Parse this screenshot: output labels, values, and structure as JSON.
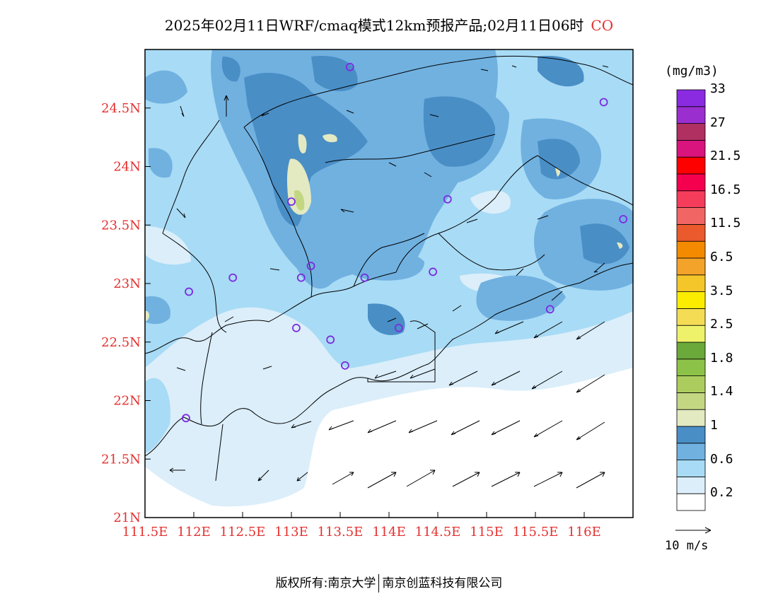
{
  "title": {
    "main": "2025年02月11日WRF/cmaq模式12km预报产品;02月11日06时",
    "species": "CO"
  },
  "colorbar": {
    "unit": "(mg/m3)",
    "bins": [
      {
        "color": "#ffffff"
      },
      {
        "color": "#dbeefa"
      },
      {
        "color": "#a8dbf5"
      },
      {
        "color": "#70b1e0"
      },
      {
        "color": "#4a8ec6"
      },
      {
        "color": "#e3eac2"
      },
      {
        "color": "#c3d783"
      },
      {
        "color": "#adcc5e"
      },
      {
        "color": "#8cc248"
      },
      {
        "color": "#6aa93a"
      },
      {
        "color": "#eef26a"
      },
      {
        "color": "#f4dc55"
      },
      {
        "color": "#fbec00"
      },
      {
        "color": "#f4c62a"
      },
      {
        "color": "#f4a32a"
      },
      {
        "color": "#f48a00"
      },
      {
        "color": "#ea5a2c"
      },
      {
        "color": "#f16565"
      },
      {
        "color": "#f53c5a"
      },
      {
        "color": "#f5004f"
      },
      {
        "color": "#ff0000"
      },
      {
        "color": "#d9147e"
      },
      {
        "color": "#b03062"
      },
      {
        "color": "#9a2ecf"
      },
      {
        "color": "#8a2be2"
      }
    ],
    "labels": [
      "0.2",
      "0.6",
      "1",
      "1.4",
      "1.8",
      "2.5",
      "3.5",
      "6.5",
      "11.5",
      "16.5",
      "21.5",
      "27",
      "33"
    ]
  },
  "axes": {
    "lon_ticks": [
      "111.5E",
      "112E",
      "112.5E",
      "113E",
      "113.5E",
      "114E",
      "114.5E",
      "115E",
      "115.5E",
      "116E"
    ],
    "lat_ticks": [
      "21N",
      "21.5N",
      "22N",
      "22.5N",
      "23N",
      "23.5N",
      "24N",
      "24.5N"
    ],
    "lon_range": [
      111.5,
      116.5
    ],
    "lat_range": [
      21.0,
      25.0
    ]
  },
  "stations": [
    {
      "lon": 113.6,
      "lat": 24.85
    },
    {
      "lon": 116.2,
      "lat": 24.55
    },
    {
      "lon": 113.0,
      "lat": 23.7
    },
    {
      "lon": 114.6,
      "lat": 23.72
    },
    {
      "lon": 116.4,
      "lat": 23.55
    },
    {
      "lon": 113.2,
      "lat": 23.15
    },
    {
      "lon": 112.4,
      "lat": 23.05
    },
    {
      "lon": 113.1,
      "lat": 23.05
    },
    {
      "lon": 113.75,
      "lat": 23.05
    },
    {
      "lon": 114.45,
      "lat": 23.1
    },
    {
      "lon": 111.95,
      "lat": 22.93
    },
    {
      "lon": 115.65,
      "lat": 22.78
    },
    {
      "lon": 113.05,
      "lat": 22.62
    },
    {
      "lon": 113.4,
      "lat": 22.52
    },
    {
      "lon": 114.1,
      "lat": 22.62
    },
    {
      "lon": 113.55,
      "lat": 22.3
    },
    {
      "lon": 111.92,
      "lat": 21.85
    }
  ],
  "wind_reference": {
    "label": "10 m/s"
  },
  "footer": {
    "left": "版权所有:南京大学",
    "right": "南京创蓝科技有限公司"
  }
}
